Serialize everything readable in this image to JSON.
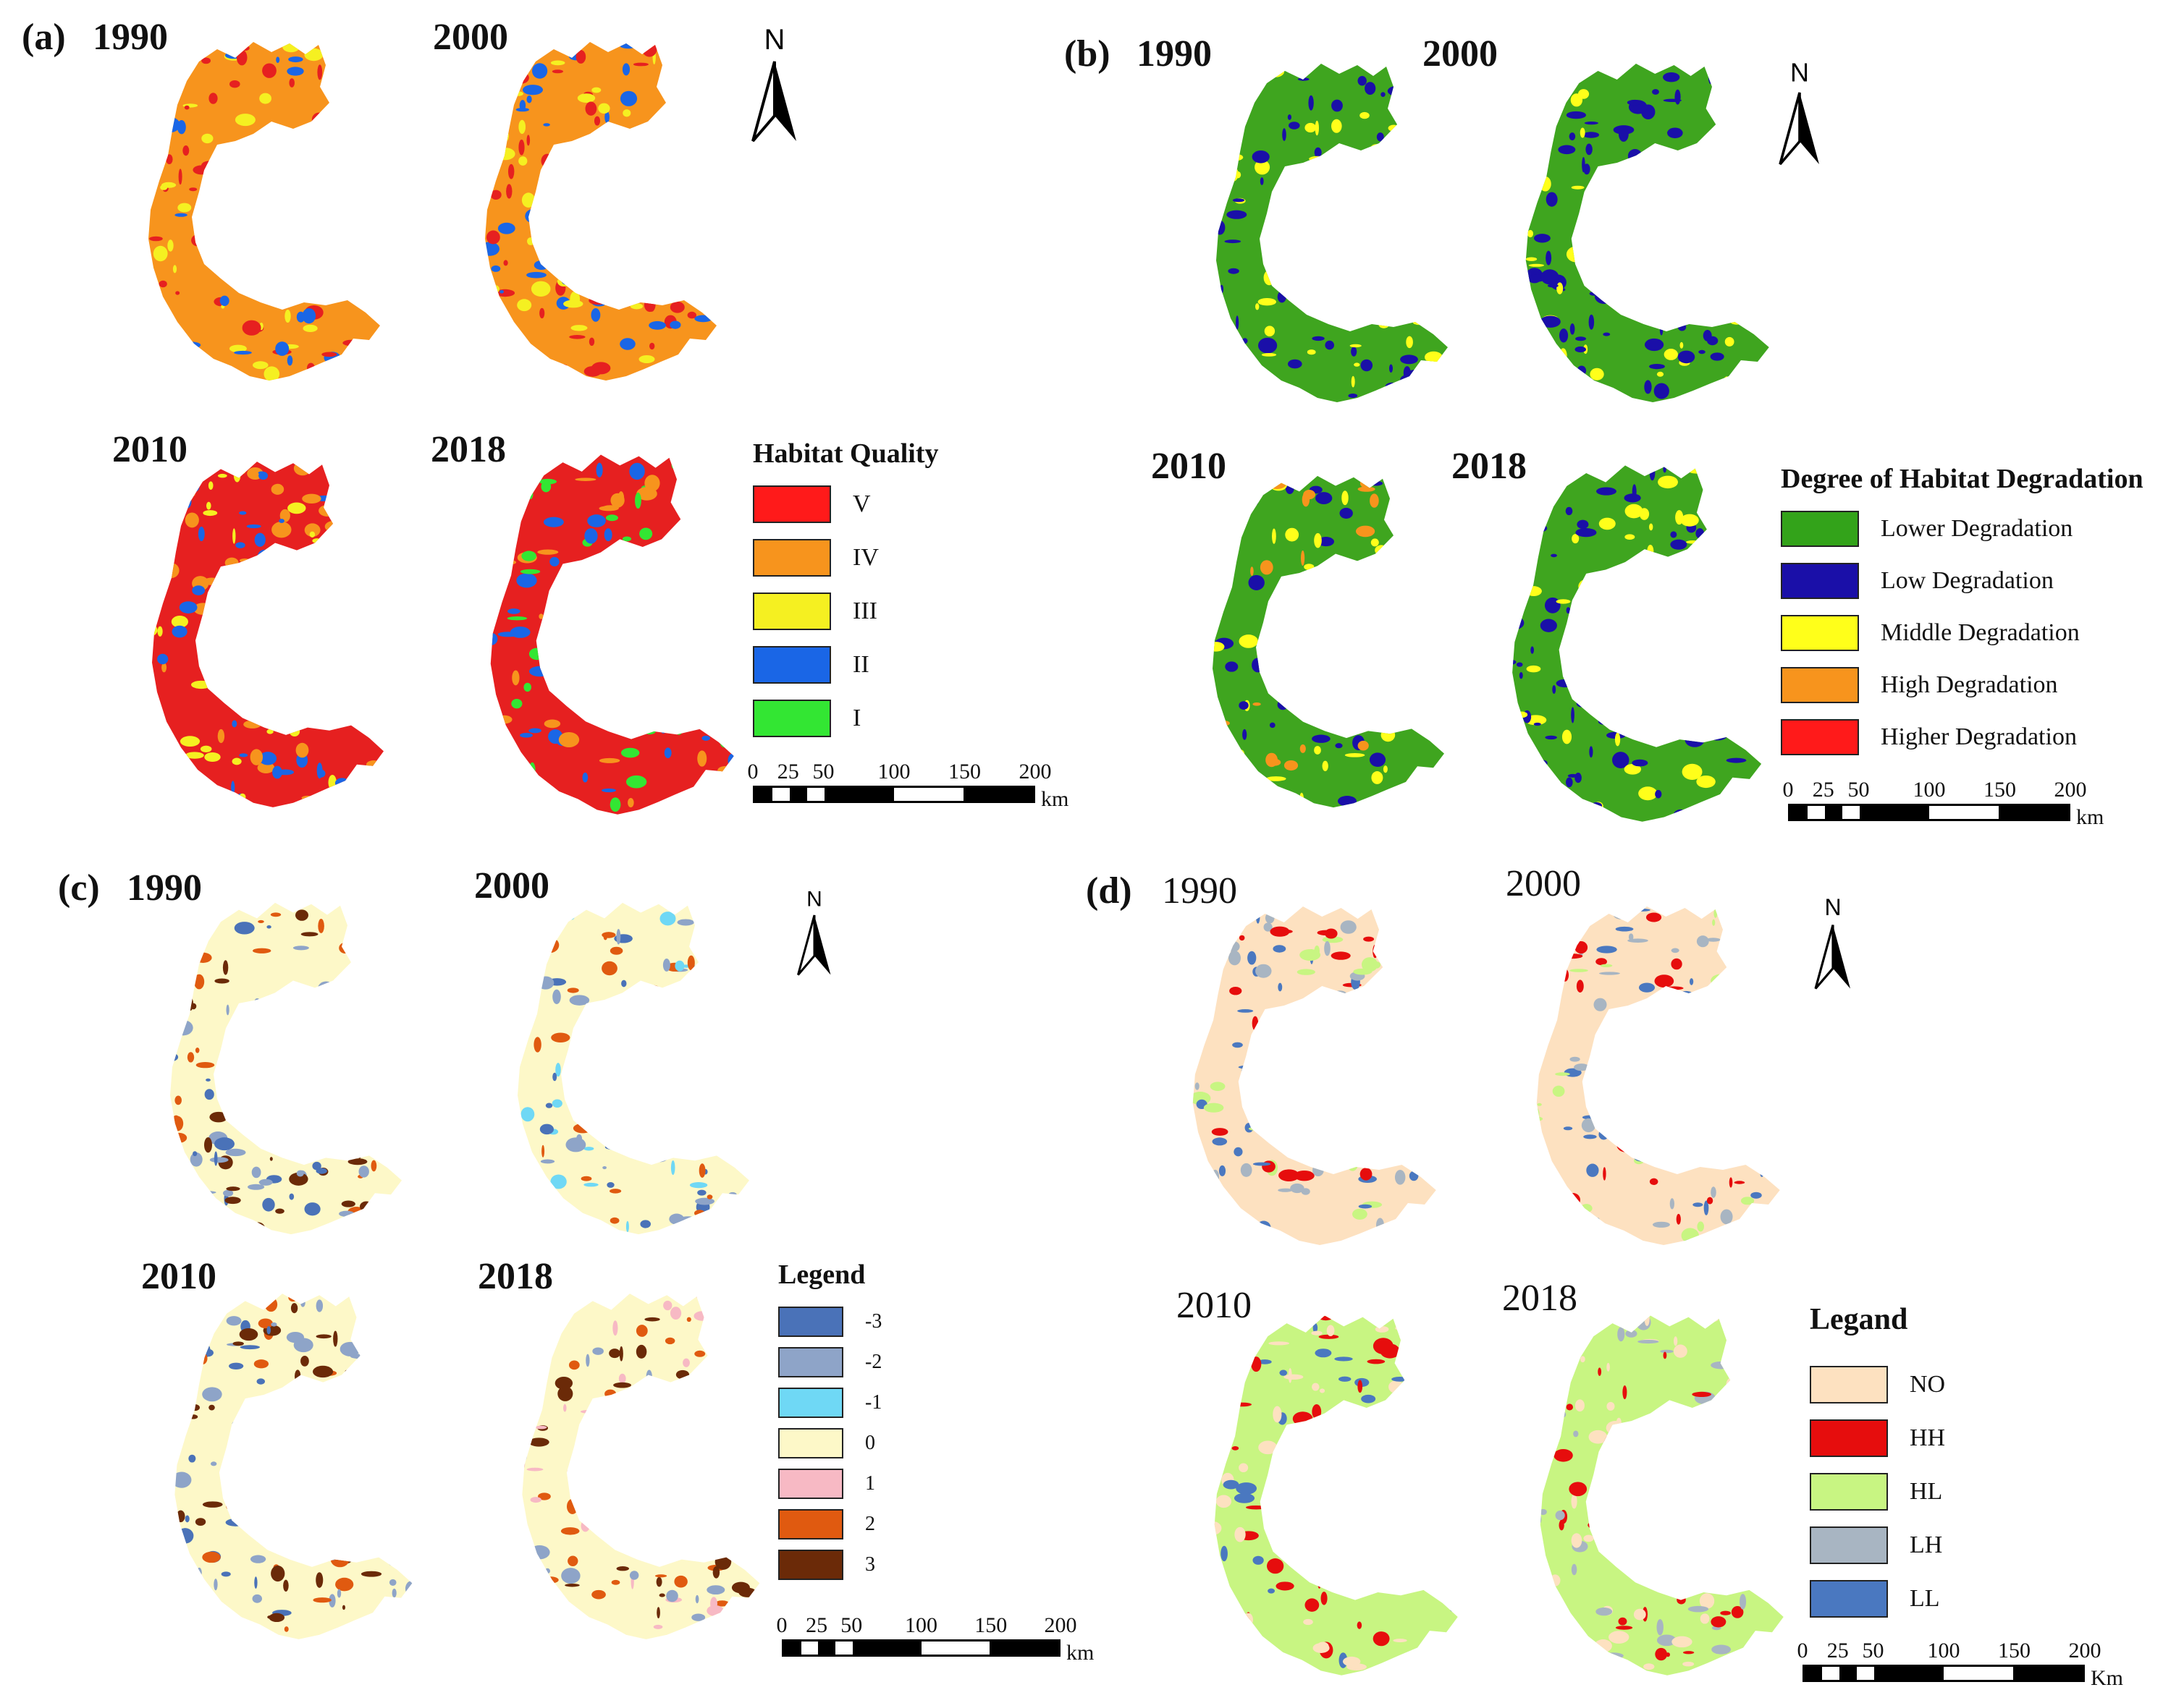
{
  "panels": [
    {
      "id": "a",
      "label": "(a)",
      "years": [
        "1990",
        "2000",
        "2010",
        "2018"
      ],
      "legend": {
        "title": "Habitat Quality",
        "items": [
          {
            "label": "V",
            "color": "#ff1a1a"
          },
          {
            "label": "IV",
            "color": "#f7941d"
          },
          {
            "label": "III",
            "color": "#f5f021"
          },
          {
            "label": "II",
            "color": "#1a66e6"
          },
          {
            "label": "I",
            "color": "#33e633"
          }
        ]
      },
      "scale": {
        "ticks": [
          "0",
          "25",
          "50",
          "100",
          "150",
          "200"
        ],
        "unit": "km"
      },
      "north": "N",
      "map_palettes": [
        {
          "base": "#f7941d",
          "spots": [
            "#e62020",
            "#f5f021",
            "#1a66e6"
          ]
        },
        {
          "base": "#f7941d",
          "spots": [
            "#e62020",
            "#f5f021",
            "#1a66e6"
          ]
        },
        {
          "base": "#e62020",
          "spots": [
            "#f7941d",
            "#1a66e6",
            "#f5f021"
          ]
        },
        {
          "base": "#e62020",
          "spots": [
            "#1a66e6",
            "#f7941d",
            "#33e633"
          ]
        }
      ]
    },
    {
      "id": "b",
      "label": "(b)",
      "years": [
        "1990",
        "2000",
        "2010",
        "2018"
      ],
      "legend": {
        "title": "Degree of Habitat Degradation",
        "items": [
          {
            "label": "Lower Degradation",
            "color": "#33a31a"
          },
          {
            "label": "Low Degradation",
            "color": "#1a0fa8"
          },
          {
            "label": "Middle Degradation",
            "color": "#ffff1a"
          },
          {
            "label": "High Degradation",
            "color": "#f7941d"
          },
          {
            "label": "Higher Degradation",
            "color": "#ff1a1a"
          }
        ]
      },
      "scale": {
        "ticks": [
          "0",
          "25",
          "50",
          "100",
          "150",
          "200"
        ],
        "unit": "km"
      },
      "north": "N",
      "map_palettes": [
        {
          "base": "#3fa51f",
          "spots": [
            "#1a0fa8",
            "#ffff1a",
            "#1a0fa8"
          ]
        },
        {
          "base": "#3fa51f",
          "spots": [
            "#1a0fa8",
            "#ffff1a",
            "#1a0fa8"
          ]
        },
        {
          "base": "#3fa51f",
          "spots": [
            "#1a0fa8",
            "#ffff1a",
            "#f7941d"
          ]
        },
        {
          "base": "#3fa51f",
          "spots": [
            "#1a0fa8",
            "#ffff1a",
            "#1a0fa8"
          ]
        }
      ]
    },
    {
      "id": "c",
      "label": "(c)",
      "years": [
        "1990",
        "2000",
        "2010",
        "2018"
      ],
      "legend": {
        "title": "Legend",
        "items": [
          {
            "label": "-3",
            "color": "#4a72b8"
          },
          {
            "label": "-2",
            "color": "#8ea4c8"
          },
          {
            "label": "-1",
            "color": "#6fd8f5"
          },
          {
            "label": "0",
            "color": "#fdf8c8"
          },
          {
            "label": "1",
            "color": "#f7b9c4"
          },
          {
            "label": "2",
            "color": "#e05a10"
          },
          {
            "label": "3",
            "color": "#6b2a08"
          }
        ]
      },
      "scale": {
        "ticks": [
          "0",
          "25",
          "50",
          "100",
          "150",
          "200"
        ],
        "unit": "km"
      },
      "north": "N",
      "map_palettes": [
        {
          "base": "#fdf8c8",
          "spots": [
            "#4a72b8",
            "#8ea4c8",
            "#e05a10",
            "#6b2a08"
          ]
        },
        {
          "base": "#fdf8c8",
          "spots": [
            "#4a72b8",
            "#8ea4c8",
            "#6fd8f5",
            "#e05a10"
          ]
        },
        {
          "base": "#fdf8c8",
          "spots": [
            "#4a72b8",
            "#e05a10",
            "#6b2a08",
            "#8ea4c8"
          ]
        },
        {
          "base": "#fdf8c8",
          "spots": [
            "#8ea4c8",
            "#6b2a08",
            "#e05a10",
            "#f7b9c4"
          ]
        }
      ]
    },
    {
      "id": "d",
      "label": "(d)",
      "years": [
        "1990",
        "2000",
        "2010",
        "2018"
      ],
      "legend": {
        "title": "Legand",
        "items": [
          {
            "label": "NO",
            "color": "#fde1c0"
          },
          {
            "label": "HH",
            "color": "#e60d0d"
          },
          {
            "label": "HL",
            "color": "#c8f582"
          },
          {
            "label": "LH",
            "color": "#a8b5c2"
          },
          {
            "label": "LL",
            "color": "#4a78c0"
          }
        ]
      },
      "scale": {
        "ticks": [
          "0",
          "25",
          "50",
          "100",
          "150",
          "200"
        ],
        "unit": "Km"
      },
      "north": "N",
      "map_palettes": [
        {
          "base": "#fde1c0",
          "spots": [
            "#e60d0d",
            "#c8f582",
            "#4a78c0",
            "#a8b5c2"
          ]
        },
        {
          "base": "#fde1c0",
          "spots": [
            "#e60d0d",
            "#c8f582",
            "#4a78c0",
            "#a8b5c2"
          ]
        },
        {
          "base": "#c8f582",
          "spots": [
            "#e60d0d",
            "#fde1c0",
            "#4a78c0"
          ]
        },
        {
          "base": "#c8f582",
          "spots": [
            "#e60d0d",
            "#fde1c0",
            "#a8b5c2"
          ]
        }
      ]
    }
  ]
}
